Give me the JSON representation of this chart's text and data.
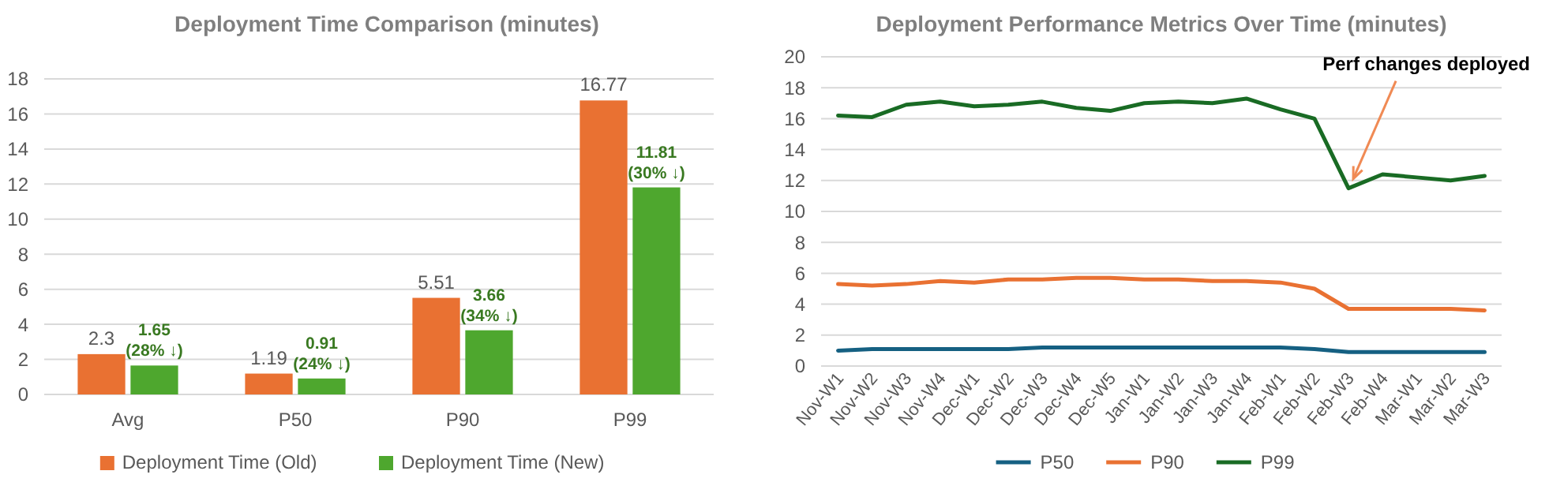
{
  "chart_data": [
    {
      "type": "bar",
      "title": "Deployment Time Comparison (minutes)",
      "categories": [
        "Avg",
        "P50",
        "P90",
        "P99"
      ],
      "series": [
        {
          "name": "Deployment Time (Old)",
          "color": "#e97132",
          "values": [
            2.3,
            1.19,
            5.51,
            16.77
          ],
          "value_labels": [
            "2.3",
            "1.19",
            "5.51",
            "16.77"
          ]
        },
        {
          "name": "Deployment Time (New)",
          "color": "#4ea72e",
          "values": [
            1.65,
            0.91,
            3.66,
            11.81
          ],
          "value_labels": [
            "1.65\n(28% ↓)",
            "0.91\n(24% ↓)",
            "3.66\n(34% ↓)",
            "11.81\n(30% ↓)"
          ]
        }
      ],
      "ylim": [
        0,
        18
      ],
      "yticks": [
        0,
        2,
        4,
        6,
        8,
        10,
        12,
        14,
        16,
        18
      ],
      "grid": "y",
      "legend": "bottom"
    },
    {
      "type": "line",
      "title": "Deployment Performance Metrics Over Time (minutes)",
      "categories": [
        "Nov-W1",
        "Nov-W2",
        "Nov-W3",
        "Nov-W4",
        "Dec-W1",
        "Dec-W2",
        "Dec-W3",
        "Dec-W4",
        "Dec-W5",
        "Jan-W1",
        "Jan-W2",
        "Jan-W3",
        "Jan-W4",
        "Feb-W1",
        "Feb-W2",
        "Feb-W3",
        "Feb-W4",
        "Mar-W1",
        "Mar-W2",
        "Mar-W3"
      ],
      "series": [
        {
          "name": "P50",
          "color": "#156082",
          "values": [
            1.0,
            1.1,
            1.1,
            1.1,
            1.1,
            1.1,
            1.2,
            1.2,
            1.2,
            1.2,
            1.2,
            1.2,
            1.2,
            1.2,
            1.1,
            0.9,
            0.9,
            0.9,
            0.9,
            0.9
          ]
        },
        {
          "name": "P90",
          "color": "#e97132",
          "values": [
            5.3,
            5.2,
            5.3,
            5.5,
            5.4,
            5.6,
            5.6,
            5.7,
            5.7,
            5.6,
            5.6,
            5.5,
            5.5,
            5.4,
            5.0,
            3.7,
            3.7,
            3.7,
            3.7,
            3.6
          ]
        },
        {
          "name": "P99",
          "color": "#196b24",
          "values": [
            16.2,
            16.1,
            16.9,
            17.1,
            16.8,
            16.9,
            17.1,
            16.7,
            16.5,
            17.0,
            17.1,
            17.0,
            17.3,
            16.6,
            16.0,
            11.5,
            12.4,
            12.2,
            12.0,
            12.3
          ]
        }
      ],
      "ylim": [
        0,
        20
      ],
      "yticks": [
        0,
        2,
        4,
        6,
        8,
        10,
        12,
        14,
        16,
        18,
        20
      ],
      "grid": "y",
      "legend": "bottom",
      "marker": "none",
      "annotations": [
        {
          "text": "Perf changes deployed",
          "x": "Feb-W3",
          "y": 11.5
        }
      ]
    }
  ]
}
